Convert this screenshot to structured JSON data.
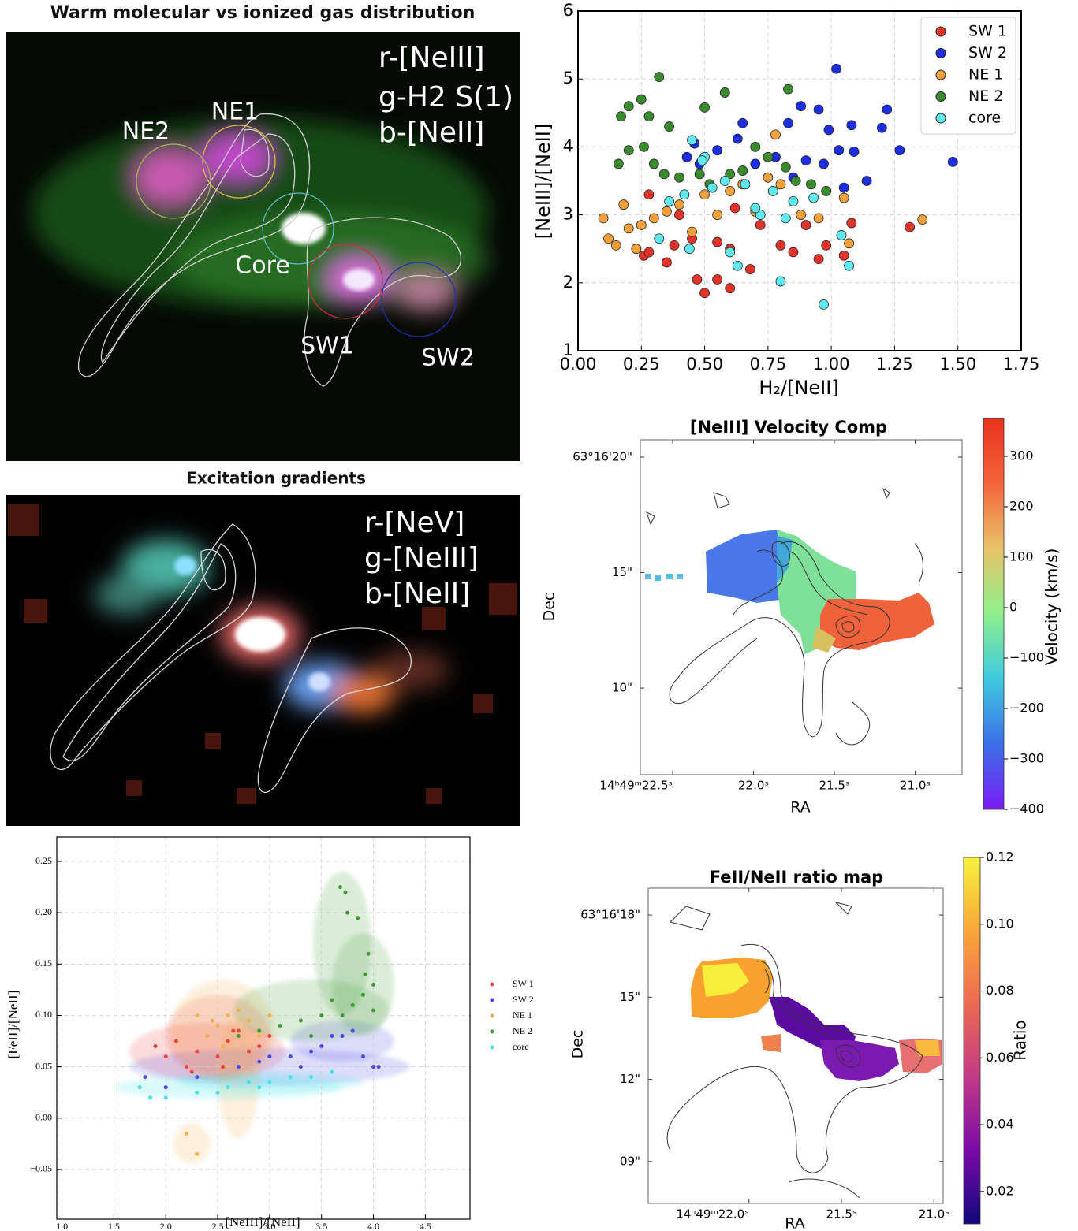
{
  "chart_data": [
    {
      "type": "image",
      "title": "Warm molecular vs ionized gas distribution",
      "channels": [
        "r-[NeIII]",
        "g-H2 S(1)",
        "b-[NeII]"
      ],
      "regions": [
        "NE2",
        "NE1",
        "Core",
        "SW1",
        "SW2"
      ]
    },
    {
      "type": "scatter",
      "xlabel": "H₂/[NeII]",
      "ylabel": "[NeIII]/[NeII]",
      "xlim": [
        0,
        1.75
      ],
      "ylim": [
        1,
        6
      ],
      "xticks": [
        {
          "value": 0,
          "label": "0.00"
        },
        0.25,
        {
          "value": 0.5,
          "label": "0.50"
        },
        0.75,
        {
          "value": 1,
          "label": "1.00"
        },
        1.25,
        {
          "value": 1.5,
          "label": "1.50"
        },
        1.75
      ],
      "yticks": [
        1,
        2,
        3,
        4,
        5,
        6
      ],
      "grid": true,
      "legend": "upper right",
      "series": [
        {
          "name": "SW 1",
          "color": "#e0342b",
          "x": [
            0.26,
            0.28,
            0.35,
            0.38,
            0.45,
            0.47,
            0.5,
            0.55,
            0.6,
            0.6,
            0.68,
            0.72,
            0.8,
            0.9,
            0.95,
            0.98,
            1.05,
            1.08,
            1.31,
            0.4,
            0.62,
            0.28,
            0.85,
            0.55
          ],
          "values": [
            2.4,
            2.45,
            2.3,
            2.55,
            2.65,
            2.05,
            1.85,
            2.05,
            1.92,
            2.5,
            2.2,
            2.85,
            2.55,
            2.85,
            2.35,
            2.55,
            2.4,
            2.88,
            2.82,
            3.0,
            3.1,
            3.3,
            2.45,
            2.6
          ]
        },
        {
          "name": "SW 2",
          "color": "#1c2ee0",
          "x": [
            1.02,
            1.48,
            1.27,
            1.22,
            1.2,
            1.08,
            0.95,
            0.88,
            0.83,
            0.99,
            1.03,
            1.09,
            0.9,
            0.97,
            0.78,
            0.65,
            0.63,
            0.55,
            0.48,
            0.46,
            0.43,
            1.14,
            1.05,
            0.7,
            0.85
          ],
          "values": [
            5.15,
            3.78,
            3.95,
            4.55,
            4.28,
            4.32,
            4.55,
            4.6,
            4.35,
            4.25,
            3.95,
            3.93,
            3.8,
            3.75,
            3.85,
            4.35,
            4.12,
            3.95,
            3.75,
            4.05,
            3.85,
            3.5,
            3.4,
            3.75,
            3.55
          ]
        },
        {
          "name": "NE 1",
          "color": "#f2a03c",
          "x": [
            0.1,
            0.12,
            0.15,
            0.2,
            0.25,
            0.3,
            0.35,
            0.4,
            0.45,
            0.5,
            0.55,
            0.6,
            0.65,
            0.7,
            0.75,
            0.8,
            0.88,
            0.95,
            1.05,
            1.07,
            1.36,
            0.78,
            0.18,
            0.23
          ],
          "values": [
            2.95,
            2.65,
            2.55,
            2.8,
            2.85,
            2.95,
            3.05,
            3.15,
            2.75,
            3.3,
            3.0,
            3.35,
            3.45,
            3.05,
            3.55,
            3.45,
            3.0,
            2.95,
            3.25,
            2.58,
            2.93,
            4.18,
            3.15,
            2.5
          ]
        },
        {
          "name": "NE 2",
          "color": "#3a8a2e",
          "x": [
            0.32,
            0.17,
            0.2,
            0.25,
            0.28,
            0.36,
            0.5,
            0.58,
            0.83,
            0.2,
            0.26,
            0.3,
            0.34,
            0.4,
            0.48,
            0.52,
            0.6,
            0.7,
            0.75,
            0.82,
            0.86,
            0.92,
            0.98,
            0.16,
            0.65
          ],
          "values": [
            5.03,
            4.45,
            4.6,
            4.7,
            4.45,
            4.3,
            4.58,
            4.8,
            4.85,
            3.95,
            4.0,
            3.75,
            3.6,
            3.55,
            3.6,
            3.45,
            3.6,
            4.0,
            3.85,
            3.7,
            3.5,
            3.45,
            3.35,
            3.75,
            3.65
          ]
        },
        {
          "name": "core",
          "color": "#5fe9ec",
          "x": [
            0.32,
            0.44,
            0.36,
            0.42,
            0.5,
            0.53,
            0.58,
            0.63,
            0.66,
            0.72,
            0.77,
            0.8,
            0.85,
            0.93,
            0.97,
            1.04,
            1.07,
            0.6,
            0.45,
            0.49,
            0.7,
            0.82
          ],
          "values": [
            2.65,
            2.5,
            3.2,
            3.3,
            3.85,
            3.4,
            3.5,
            2.25,
            3.45,
            3.0,
            3.35,
            2.02,
            3.2,
            3.25,
            1.68,
            2.7,
            2.25,
            2.45,
            4.1,
            3.8,
            3.1,
            2.95
          ]
        }
      ]
    },
    {
      "type": "image",
      "title": "Excitation gradients",
      "channels": [
        "r-[NeV]",
        "g-[NeIII]",
        "b-[NeII]"
      ],
      "regions": []
    },
    {
      "type": "map",
      "title": "[NeIII] Velocity Comp",
      "xlabel": "RA",
      "ylabel": "Dec",
      "xlim": [
        22.7,
        20.71
      ],
      "ylim": [
        6.25,
        20.75
      ],
      "xticks": [
        {
          "value": 22.5,
          "label": "14ʰ49ᵐ22.5ˢ"
        },
        {
          "value": 22.0,
          "label": "22.0ˢ"
        },
        {
          "value": 21.5,
          "label": "21.5ˢ"
        },
        {
          "value": 21.0,
          "label": "21.0ˢ"
        }
      ],
      "yticks": [
        {
          "value": 20,
          "label": "63°16'20\""
        },
        {
          "value": 15,
          "label": "15\""
        },
        {
          "value": 10,
          "label": "10\""
        }
      ],
      "colorbar": {
        "label": "Velocity (km/s)",
        "lim": [
          -400,
          375
        ],
        "ticks": [
          {
            "value": -400,
            "label": "−400"
          },
          {
            "value": -300,
            "label": "−300"
          },
          {
            "value": -200,
            "label": "−200"
          },
          {
            "value": -100,
            "label": "−100"
          },
          0,
          100,
          200,
          300
        ],
        "colors": [
          "#7a1cf5",
          "#3b6fe8",
          "#3ec9e0",
          "#8ef08c",
          "#e8c46a",
          "#f5643a",
          "#e8321e"
        ]
      }
    },
    {
      "type": "scatter",
      "kde": true,
      "xlabel": "[NeIII]/[NeII]",
      "ylabel": "[FeII]/[NeII]",
      "xlim": [
        0.95,
        4.93
      ],
      "ylim": [
        -0.0984,
        0.2738
      ],
      "xticks": [
        {
          "value": 1,
          "label": "1.0"
        },
        1.5,
        {
          "value": 2,
          "label": "2.0"
        },
        2.5,
        {
          "value": 3,
          "label": "3.0"
        },
        3.5,
        {
          "value": 4,
          "label": "4.0"
        },
        4.5
      ],
      "yticks": [
        {
          "value": -0.05,
          "label": "−0.05"
        },
        {
          "value": 0,
          "label": "0.00"
        },
        0.05,
        {
          "value": 0.1,
          "label": "0.10"
        },
        0.15,
        {
          "value": 0.2,
          "label": "0.20"
        },
        0.25
      ],
      "grid": true,
      "legend": "outside right",
      "series": [
        {
          "name": "SW 1",
          "color": "#f0433a",
          "x": [
            1.9,
            2.0,
            2.1,
            2.2,
            2.3,
            2.4,
            2.5,
            2.6,
            2.7,
            2.8,
            2.9,
            3.0,
            2.25,
            2.55,
            2.65
          ],
          "values": [
            0.07,
            0.06,
            0.075,
            0.05,
            0.065,
            0.08,
            0.06,
            0.075,
            0.085,
            0.065,
            0.07,
            0.08,
            0.045,
            0.05,
            0.085
          ]
        },
        {
          "name": "SW 2",
          "color": "#4a4ae8",
          "x": [
            1.8,
            2.0,
            2.3,
            2.7,
            3.0,
            3.2,
            3.4,
            3.5,
            3.6,
            3.7,
            3.8,
            3.9,
            4.0,
            4.05,
            3.3,
            2.9
          ],
          "values": [
            0.04,
            0.03,
            0.04,
            0.05,
            0.06,
            0.06,
            0.065,
            0.07,
            0.08,
            0.08,
            0.085,
            0.06,
            0.05,
            0.05,
            0.05,
            0.055
          ]
        },
        {
          "name": "NE 1",
          "color": "#f2b04a",
          "x": [
            2.2,
            2.3,
            2.3,
            2.45,
            2.5,
            2.6,
            2.7,
            2.8,
            2.4,
            2.9,
            2.55,
            3.0
          ],
          "values": [
            -0.015,
            -0.035,
            0.1,
            0.095,
            0.09,
            0.1,
            0.105,
            0.095,
            0.08,
            0.08,
            0.07,
            0.1
          ]
        },
        {
          "name": "NE 2",
          "color": "#3f9a35",
          "x": [
            3.68,
            3.75,
            3.73,
            3.85,
            3.95,
            3.92,
            4.0,
            3.9,
            3.8,
            3.7,
            3.5,
            3.3,
            3.1,
            2.9,
            2.7,
            3.6,
            4.0,
            3.4
          ],
          "values": [
            0.225,
            0.2,
            0.22,
            0.195,
            0.16,
            0.14,
            0.13,
            0.12,
            0.11,
            0.1,
            0.1,
            0.095,
            0.09,
            0.085,
            0.08,
            0.115,
            0.105,
            0.08
          ]
        },
        {
          "name": "core",
          "color": "#3fe3e8",
          "x": [
            1.75,
            1.85,
            2.0,
            2.3,
            2.6,
            2.8,
            3.0,
            3.2,
            3.4,
            3.6,
            2.5,
            2.9
          ],
          "values": [
            0.03,
            0.02,
            0.02,
            0.025,
            0.03,
            0.035,
            0.035,
            0.04,
            0.04,
            0.045,
            0.025,
            0.03
          ]
        }
      ]
    },
    {
      "type": "map",
      "title": "FeII/NeII ratio map",
      "xlabel": "RA",
      "ylabel": "Dec",
      "xlim": [
        22.545,
        20.95
      ],
      "ylim": [
        7.47,
        18.98
      ],
      "xticks": [
        {
          "value": 22.0,
          "label": "14ʰ49ᵐ22.0ˢ"
        },
        {
          "value": 21.5,
          "label": "21.5ˢ"
        },
        {
          "value": 21.0,
          "label": "21.0ˢ"
        }
      ],
      "yticks": [
        {
          "value": 18,
          "label": "63°16'18\""
        },
        {
          "value": 15,
          "label": "15\""
        },
        {
          "value": 12,
          "label": "12\""
        },
        {
          "value": 9,
          "label": "09\""
        }
      ],
      "colorbar": {
        "label": "Ratio",
        "lim": [
          0.0103,
          0.12
        ],
        "ticks": [
          0.02,
          0.04,
          0.06,
          {
            "value": 0.08,
            "label": "0.08"
          },
          {
            "value": 0.1,
            "label": "0.10"
          },
          0.12
        ],
        "colors": [
          "#10087a",
          "#7a0aa8",
          "#c23a86",
          "#ec6a52",
          "#f9a63a",
          "#f6f33c"
        ]
      }
    }
  ]
}
